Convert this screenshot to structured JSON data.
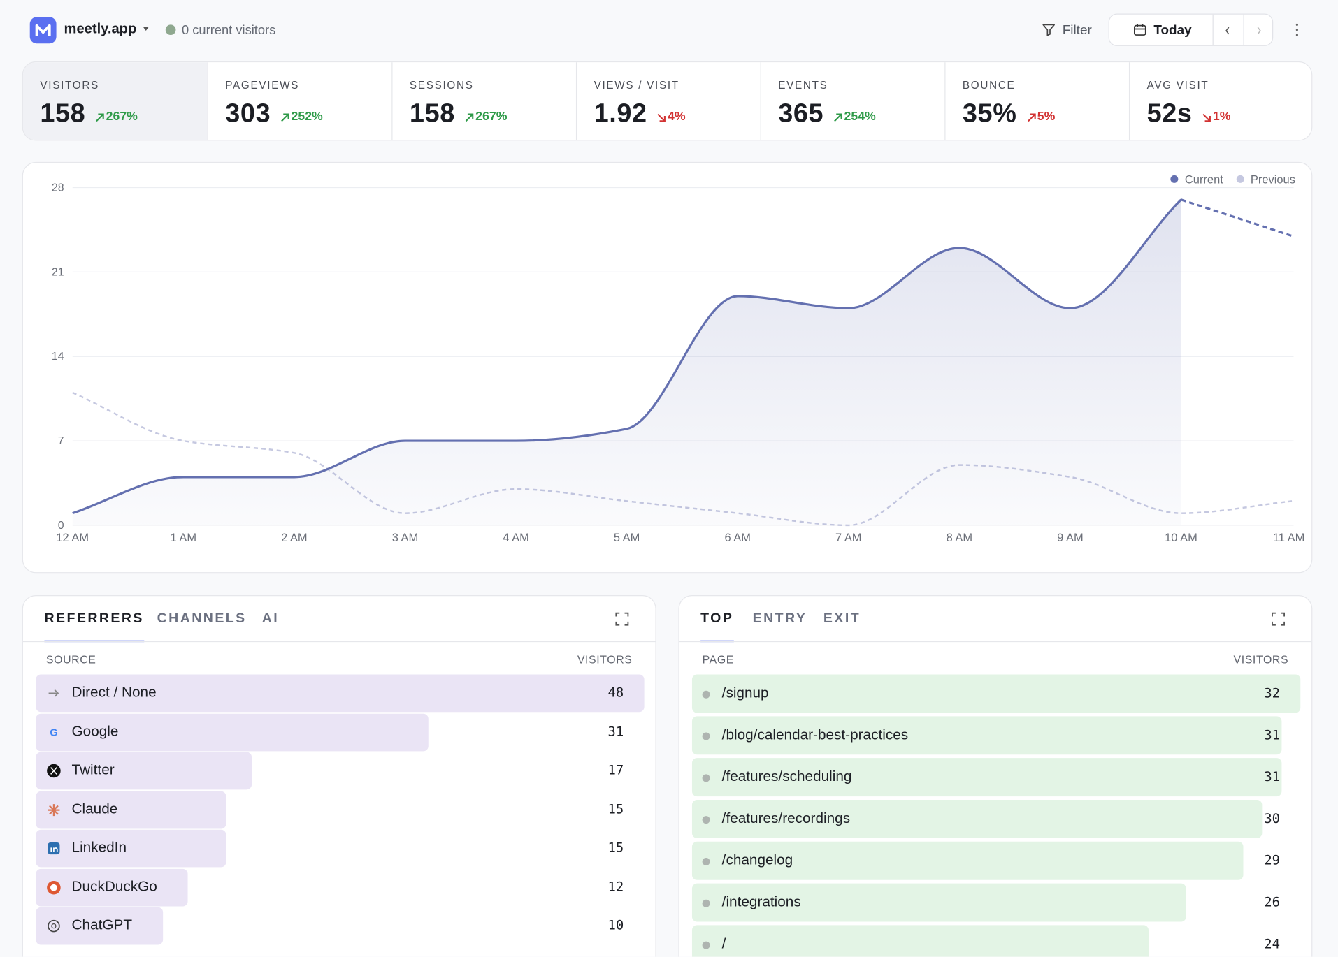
{
  "header": {
    "brand": "meetly.app",
    "live": "0 current visitors",
    "filter": "Filter",
    "range": "Today"
  },
  "stats": [
    {
      "label": "VISITORS",
      "value": "158",
      "change": "267%",
      "trend": "up",
      "sentiment": "good"
    },
    {
      "label": "PAGEVIEWS",
      "value": "303",
      "change": "252%",
      "trend": "up",
      "sentiment": "good"
    },
    {
      "label": "SESSIONS",
      "value": "158",
      "change": "267%",
      "trend": "up",
      "sentiment": "good"
    },
    {
      "label": "VIEWS / VISIT",
      "value": "1.92",
      "change": "4%",
      "trend": "down",
      "sentiment": "bad"
    },
    {
      "label": "EVENTS",
      "value": "365",
      "change": "254%",
      "trend": "up",
      "sentiment": "good"
    },
    {
      "label": "BOUNCE",
      "value": "35%",
      "change": "5%",
      "trend": "up",
      "sentiment": "bad"
    },
    {
      "label": "AVG VISIT",
      "value": "52s",
      "change": "1%",
      "trend": "down",
      "sentiment": "bad"
    }
  ],
  "chart_data": {
    "type": "line",
    "categories": [
      "12 AM",
      "1 AM",
      "2 AM",
      "3 AM",
      "4 AM",
      "5 AM",
      "6 AM",
      "7 AM",
      "8 AM",
      "9 AM",
      "10 AM",
      "11 AM"
    ],
    "series": [
      {
        "name": "Current",
        "color": "#6470b0",
        "values": [
          1,
          4,
          4,
          7,
          7,
          8,
          19,
          18,
          23,
          18,
          27,
          24
        ],
        "area": true,
        "incomplete_last": true
      },
      {
        "name": "Previous",
        "color": "#c5c8e0",
        "values": [
          11,
          7,
          6,
          1,
          3,
          2,
          1,
          0,
          5,
          4,
          1,
          2
        ],
        "dashed": true
      }
    ],
    "ylim": [
      0,
      28
    ],
    "yticks": [
      0,
      7,
      14,
      21,
      28
    ],
    "grid": true,
    "legend": "top-right"
  },
  "referrers": {
    "tabs": [
      "REFERRERS",
      "CHANNELS",
      "AI"
    ],
    "active_tab": 0,
    "columns": [
      "SOURCE",
      "VISITORS"
    ],
    "color": "#eae4f5",
    "rows": [
      {
        "name": "Direct / None",
        "visitors": 48
      },
      {
        "name": "Google",
        "visitors": 31
      },
      {
        "name": "Twitter",
        "visitors": 17
      },
      {
        "name": "Claude",
        "visitors": 15
      },
      {
        "name": "LinkedIn",
        "visitors": 15
      },
      {
        "name": "DuckDuckGo",
        "visitors": 12
      },
      {
        "name": "ChatGPT",
        "visitors": 10
      }
    ]
  },
  "pages": {
    "tabs": [
      "TOP",
      "ENTRY",
      "EXIT"
    ],
    "active_tab": 0,
    "columns": [
      "PAGE",
      "VISITORS"
    ],
    "color": "#e3f4e5",
    "rows": [
      {
        "name": "/signup",
        "visitors": 32
      },
      {
        "name": "/blog/calendar-best-practices",
        "visitors": 31
      },
      {
        "name": "/features/scheduling",
        "visitors": 31
      },
      {
        "name": "/features/recordings",
        "visitors": 30
      },
      {
        "name": "/changelog",
        "visitors": 29
      },
      {
        "name": "/integrations",
        "visitors": 26
      },
      {
        "name": "/",
        "visitors": 24
      }
    ]
  }
}
